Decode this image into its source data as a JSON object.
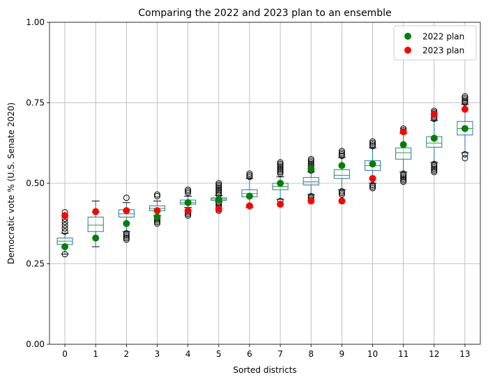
{
  "chart_data": {
    "type": "box",
    "title": "Comparing the 2022 and 2023 plan to an ensemble",
    "xlabel": "Sorted districts",
    "ylabel": "Democratic vote % (U.S. Senate 2020)",
    "categories": [
      "0",
      "1",
      "2",
      "3",
      "4",
      "5",
      "6",
      "7",
      "8",
      "9",
      "10",
      "11",
      "12",
      "13"
    ],
    "ylim": [
      0,
      1
    ],
    "yticks": [
      0,
      0.25,
      0.5,
      0.75,
      1
    ],
    "ytick_labels": [
      "0.00",
      "0.25",
      "0.50",
      "0.75",
      "1.00"
    ],
    "grid": true,
    "legend_position": "top-right",
    "boxes": [
      {
        "whislo": 0.28,
        "q1": 0.31,
        "med": 0.32,
        "q3": 0.33,
        "whishi": 0.345,
        "fliers": [
          0.28,
          0.35,
          0.36,
          0.37,
          0.38,
          0.39,
          0.4,
          0.41
        ]
      },
      {
        "whislo": 0.303,
        "q1": 0.35,
        "med": 0.37,
        "q3": 0.395,
        "whishi": 0.445,
        "fliers": []
      },
      {
        "whislo": 0.35,
        "q1": 0.395,
        "med": 0.405,
        "q3": 0.418,
        "whishi": 0.44,
        "fliers": [
          0.325,
          0.33,
          0.335,
          0.34,
          0.345,
          0.455
        ]
      },
      {
        "whislo": 0.4,
        "q1": 0.415,
        "med": 0.422,
        "q3": 0.43,
        "whishi": 0.445,
        "fliers": [
          0.375,
          0.38,
          0.385,
          0.39,
          0.46,
          0.465
        ]
      },
      {
        "whislo": 0.425,
        "q1": 0.435,
        "med": 0.44,
        "q3": 0.448,
        "whishi": 0.46,
        "fliers": [
          0.4,
          0.405,
          0.41,
          0.47,
          0.475,
          0.48
        ]
      },
      {
        "whislo": 0.443,
        "q1": 0.447,
        "med": 0.451,
        "q3": 0.455,
        "whishi": 0.462,
        "fliers": [
          0.415,
          0.42,
          0.425,
          0.43,
          0.435,
          0.44,
          0.465,
          0.47,
          0.475,
          0.48,
          0.485,
          0.49,
          0.495,
          0.5
        ]
      },
      {
        "whislo": 0.425,
        "q1": 0.458,
        "med": 0.468,
        "q3": 0.48,
        "whishi": 0.515,
        "fliers": [
          0.52,
          0.525,
          0.53
        ]
      },
      {
        "whislo": 0.45,
        "q1": 0.48,
        "med": 0.49,
        "q3": 0.5,
        "whishi": 0.52,
        "fliers": [
          0.445,
          0.53,
          0.535,
          0.54,
          0.545,
          0.55,
          0.555,
          0.56,
          0.565
        ]
      },
      {
        "whislo": 0.465,
        "q1": 0.495,
        "med": 0.505,
        "q3": 0.518,
        "whishi": 0.535,
        "fliers": [
          0.445,
          0.45,
          0.455,
          0.46,
          0.54,
          0.545,
          0.55,
          0.555,
          0.56,
          0.565,
          0.57,
          0.575
        ]
      },
      {
        "whislo": 0.48,
        "q1": 0.515,
        "med": 0.525,
        "q3": 0.542,
        "whishi": 0.58,
        "fliers": [
          0.465,
          0.47,
          0.475,
          0.585,
          0.59,
          0.595,
          0.6
        ]
      },
      {
        "whislo": 0.5,
        "q1": 0.54,
        "med": 0.555,
        "q3": 0.57,
        "whishi": 0.61,
        "fliers": [
          0.485,
          0.49,
          0.495,
          0.615,
          0.62,
          0.625,
          0.63
        ]
      },
      {
        "whislo": 0.535,
        "q1": 0.575,
        "med": 0.595,
        "q3": 0.61,
        "whishi": 0.655,
        "fliers": [
          0.505,
          0.51,
          0.515,
          0.52,
          0.525,
          0.53,
          0.66,
          0.665,
          0.67
        ]
      },
      {
        "whislo": 0.565,
        "q1": 0.612,
        "med": 0.625,
        "q3": 0.645,
        "whishi": 0.695,
        "fliers": [
          0.535,
          0.54,
          0.545,
          0.55,
          0.555,
          0.56,
          0.7,
          0.705,
          0.71,
          0.715,
          0.72,
          0.725
        ]
      },
      {
        "whislo": 0.595,
        "q1": 0.65,
        "med": 0.67,
        "q3": 0.692,
        "whishi": 0.745,
        "fliers": [
          0.578,
          0.59,
          0.75,
          0.755,
          0.76,
          0.765,
          0.77
        ]
      }
    ],
    "series": [
      {
        "name": "2022 plan",
        "color": "#008000",
        "values": [
          0.303,
          0.33,
          0.375,
          0.395,
          0.44,
          0.45,
          0.46,
          0.5,
          0.545,
          0.555,
          0.56,
          0.62,
          0.64,
          0.67
        ]
      },
      {
        "name": "2023 plan",
        "color": "#ff0000",
        "values": [
          0.4,
          0.412,
          0.415,
          0.415,
          0.415,
          0.42,
          0.43,
          0.435,
          0.445,
          0.445,
          0.515,
          0.66,
          0.715,
          0.73
        ]
      }
    ]
  }
}
